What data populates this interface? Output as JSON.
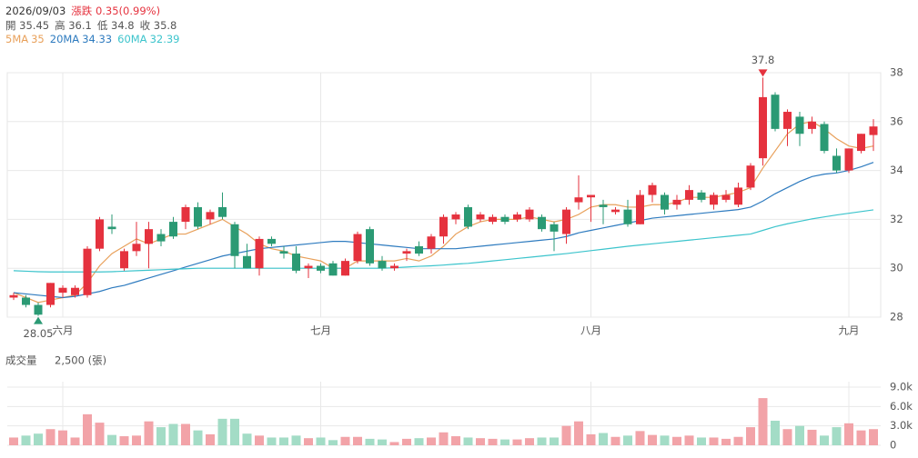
{
  "header": {
    "date": "2026/09/03",
    "change": "漲跌 0.35(0.99%)",
    "fields": [
      "開 35.45",
      "高 36.1",
      "低 34.8",
      "收 35.8"
    ]
  },
  "chart_data": [
    {
      "type": "candlestick",
      "up_color": "#e5323e",
      "down_color": "#2b9a74",
      "categories": [
        null,
        null,
        null,
        null,
        "六月",
        null,
        null,
        null,
        null,
        null,
        null,
        null,
        null,
        null,
        null,
        null,
        null,
        null,
        null,
        null,
        null,
        null,
        null,
        null,
        null,
        "七月",
        null,
        null,
        null,
        null,
        null,
        null,
        null,
        null,
        null,
        null,
        null,
        null,
        null,
        null,
        null,
        null,
        null,
        null,
        null,
        null,
        null,
        "八月",
        null,
        null,
        null,
        null,
        null,
        null,
        null,
        null,
        null,
        null,
        null,
        null,
        null,
        null,
        null,
        null,
        null,
        null,
        null,
        null,
        "九月",
        null,
        null
      ],
      "open": [
        28.8,
        28.8,
        28.5,
        28.5,
        29.0,
        28.9,
        28.9,
        30.8,
        31.7,
        30.0,
        30.7,
        31.0,
        31.4,
        31.9,
        31.9,
        32.5,
        32.0,
        32.5,
        31.8,
        30.5,
        30.0,
        31.2,
        30.7,
        30.6,
        30.0,
        30.1,
        30.2,
        29.7,
        30.3,
        31.6,
        30.3,
        30.0,
        30.6,
        30.9,
        30.8,
        31.3,
        32.0,
        32.5,
        32.0,
        31.9,
        32.1,
        32.0,
        32.0,
        32.1,
        31.8,
        31.4,
        32.7,
        32.9,
        32.6,
        32.3,
        32.4,
        31.8,
        33.0,
        33.0,
        32.6,
        32.8,
        33.1,
        32.6,
        32.8,
        32.6,
        33.3,
        34.5,
        37.1,
        35.7,
        36.2,
        35.7,
        35.9,
        34.6,
        34.0,
        34.8,
        35.45
      ],
      "high": [
        29.0,
        28.9,
        28.6,
        29.4,
        29.3,
        29.3,
        30.9,
        32.1,
        32.2,
        30.8,
        31.9,
        31.9,
        31.6,
        32.1,
        32.6,
        32.7,
        32.4,
        33.1,
        31.9,
        31.0,
        31.3,
        31.3,
        30.9,
        30.9,
        30.2,
        30.2,
        30.3,
        30.4,
        31.5,
        31.7,
        30.5,
        30.2,
        30.8,
        31.1,
        31.4,
        32.2,
        32.3,
        32.6,
        32.3,
        32.2,
        32.2,
        32.3,
        32.5,
        32.2,
        31.9,
        32.5,
        33.8,
        33.0,
        32.8,
        32.5,
        32.8,
        33.2,
        33.5,
        33.1,
        33.0,
        33.4,
        33.2,
        33.1,
        33.2,
        33.5,
        34.3,
        37.8,
        37.2,
        36.5,
        36.4,
        36.2,
        36.0,
        34.9,
        34.9,
        35.5,
        36.1
      ],
      "low": [
        28.7,
        28.4,
        28.05,
        28.4,
        28.8,
        28.8,
        28.8,
        30.7,
        31.4,
        29.9,
        30.5,
        30.0,
        30.9,
        31.2,
        31.6,
        31.6,
        31.8,
        32.0,
        30.0,
        30.0,
        29.7,
        30.9,
        30.4,
        29.8,
        29.6,
        29.8,
        29.7,
        29.7,
        30.2,
        30.1,
        29.9,
        29.9,
        30.3,
        30.5,
        30.6,
        31.0,
        31.8,
        31.6,
        31.9,
        31.8,
        31.8,
        31.9,
        31.9,
        31.5,
        30.7,
        31.0,
        32.4,
        31.9,
        31.8,
        32.2,
        31.7,
        31.8,
        32.7,
        32.2,
        32.4,
        32.6,
        32.7,
        32.4,
        32.7,
        32.5,
        33.2,
        34.2,
        35.6,
        35.0,
        35.0,
        35.5,
        34.7,
        33.9,
        33.9,
        34.7,
        34.8
      ],
      "close": [
        28.9,
        28.5,
        28.1,
        29.4,
        29.2,
        29.2,
        30.8,
        32.0,
        31.6,
        30.7,
        31.0,
        31.6,
        31.1,
        31.3,
        32.5,
        31.7,
        32.3,
        32.1,
        30.5,
        30.0,
        31.2,
        31.0,
        30.6,
        29.9,
        30.1,
        29.9,
        29.7,
        30.3,
        31.4,
        30.2,
        30.0,
        30.1,
        30.7,
        30.6,
        31.3,
        32.1,
        32.2,
        31.7,
        32.2,
        32.1,
        31.9,
        32.2,
        32.4,
        31.6,
        31.5,
        32.4,
        32.9,
        33.0,
        32.5,
        32.4,
        31.8,
        33.0,
        33.4,
        32.4,
        32.8,
        33.2,
        32.8,
        33.0,
        33.0,
        33.3,
        34.2,
        37.0,
        35.7,
        36.4,
        35.5,
        36.0,
        34.8,
        34.0,
        34.9,
        35.5,
        35.8
      ],
      "series": [
        {
          "name": "5MA",
          "label": "35",
          "color": "#e8a05a",
          "values": [
            29.0,
            28.8,
            28.6,
            28.7,
            28.8,
            28.9,
            29.4,
            30.1,
            30.6,
            30.9,
            31.2,
            31.0,
            31.2,
            31.4,
            31.4,
            31.6,
            31.8,
            32.0,
            31.7,
            31.4,
            31.0,
            30.8,
            30.7,
            30.5,
            30.4,
            30.3,
            30.0,
            30.0,
            30.3,
            30.3,
            30.3,
            30.3,
            30.4,
            30.3,
            30.5,
            30.9,
            31.4,
            31.7,
            31.9,
            32.0,
            32.0,
            32.0,
            32.1,
            32.0,
            31.9,
            32.0,
            32.2,
            32.5,
            32.6,
            32.6,
            32.5,
            32.5,
            32.6,
            32.6,
            32.7,
            32.9,
            32.9,
            32.9,
            33.0,
            33.1,
            33.3,
            34.1,
            34.8,
            35.5,
            35.9,
            36.0,
            35.7,
            35.3,
            35.0,
            34.9,
            35.0
          ]
        },
        {
          "name": "20MA",
          "label": "34.33",
          "color": "#2e7bbf",
          "values": [
            29.0,
            28.95,
            28.9,
            28.85,
            28.8,
            28.85,
            28.95,
            29.05,
            29.2,
            29.3,
            29.45,
            29.6,
            29.75,
            29.9,
            30.05,
            30.2,
            30.35,
            30.5,
            30.6,
            30.7,
            30.8,
            30.85,
            30.9,
            30.95,
            31.0,
            31.05,
            31.1,
            31.1,
            31.05,
            31.0,
            30.95,
            30.9,
            30.85,
            30.8,
            30.8,
            30.8,
            30.8,
            30.85,
            30.9,
            30.95,
            31.0,
            31.05,
            31.1,
            31.15,
            31.2,
            31.3,
            31.45,
            31.55,
            31.65,
            31.75,
            31.85,
            31.95,
            32.05,
            32.1,
            32.15,
            32.2,
            32.25,
            32.3,
            32.35,
            32.4,
            32.5,
            32.75,
            33.05,
            33.3,
            33.55,
            33.75,
            33.85,
            33.9,
            34.0,
            34.15,
            34.33
          ]
        },
        {
          "name": "60MA",
          "label": "32.39",
          "color": "#3cc4cc",
          "values": [
            29.9,
            29.88,
            29.86,
            29.85,
            29.85,
            29.85,
            29.85,
            29.85,
            29.86,
            29.88,
            29.9,
            29.92,
            29.94,
            29.96,
            29.98,
            30.0,
            30.0,
            30.0,
            30.0,
            30.0,
            30.0,
            30.0,
            30.0,
            30.0,
            30.0,
            30.0,
            30.0,
            30.0,
            30.0,
            30.0,
            30.0,
            30.02,
            30.05,
            30.08,
            30.1,
            30.13,
            30.17,
            30.2,
            30.25,
            30.3,
            30.35,
            30.4,
            30.45,
            30.5,
            30.55,
            30.6,
            30.66,
            30.72,
            30.78,
            30.84,
            30.9,
            30.95,
            31.0,
            31.05,
            31.1,
            31.15,
            31.2,
            31.25,
            31.3,
            31.35,
            31.4,
            31.55,
            31.7,
            31.82,
            31.92,
            32.02,
            32.1,
            32.18,
            32.25,
            32.32,
            32.39
          ]
        }
      ],
      "annotations": {
        "max": "37.8",
        "min": "28.05"
      },
      "ylim": [
        28,
        38
      ],
      "yticks": [
        28,
        30,
        32,
        34,
        36,
        38
      ],
      "grid": true
    },
    {
      "type": "bar",
      "title": "成交量",
      "subtitle": "2,500 (張)",
      "up_color": "#f2a3a8",
      "down_color": "#a3dcc6",
      "values": [
        1200,
        1500,
        1800,
        2500,
        2300,
        1200,
        4800,
        3500,
        1600,
        1400,
        1500,
        3700,
        2800,
        3300,
        3300,
        2300,
        1700,
        4100,
        4100,
        1800,
        1500,
        1200,
        1200,
        1500,
        1100,
        1200,
        800,
        1300,
        1300,
        1000,
        900,
        500,
        1000,
        1100,
        1200,
        2000,
        1400,
        1200,
        1100,
        1000,
        900,
        900,
        1100,
        1200,
        1200,
        3000,
        3700,
        1700,
        1900,
        1300,
        1500,
        2200,
        1600,
        1500,
        1300,
        1500,
        1200,
        1200,
        1000,
        1300,
        2800,
        7300,
        3800,
        2500,
        3000,
        2400,
        1500,
        2800,
        3400,
        2300,
        2500
      ],
      "ylim": [
        0,
        9000
      ],
      "yticks": [
        0,
        {
          "value": 3000,
          "label": "3.0k"
        },
        {
          "value": 6000,
          "label": "6.0k"
        },
        {
          "value": 9000,
          "label": "9.0k"
        }
      ],
      "grid": true
    }
  ]
}
